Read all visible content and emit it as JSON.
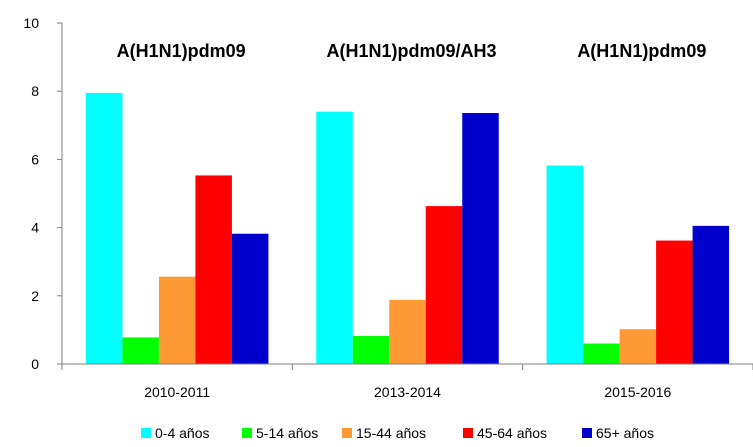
{
  "chart_data": {
    "type": "bar",
    "categories": [
      "2010-2011",
      "2013-2014",
      "2015-2016"
    ],
    "series": [
      {
        "name": "0-4 años",
        "color": "#00ffff",
        "values": [
          7.95,
          7.4,
          5.82
        ]
      },
      {
        "name": "5-14 años",
        "color": "#00ff00",
        "values": [
          0.78,
          0.82,
          0.6
        ]
      },
      {
        "name": "15-44 años",
        "color": "#ff9933",
        "values": [
          2.56,
          1.88,
          1.02
        ]
      },
      {
        "name": "45-64 años",
        "color": "#ff0000",
        "values": [
          5.53,
          4.63,
          3.62
        ]
      },
      {
        "name": "65+ años",
        "color": "#0000cc",
        "values": [
          3.82,
          7.36,
          4.05
        ]
      }
    ],
    "annotations": [
      "A(H1N1)pdm09",
      "A(H1N1)pdm09/AH3",
      "A(H1N1)pdm09"
    ],
    "yticks": [
      0,
      2,
      4,
      6,
      8,
      10
    ],
    "ylim": [
      0,
      10
    ],
    "grid": false,
    "legend_position": "bottom"
  }
}
